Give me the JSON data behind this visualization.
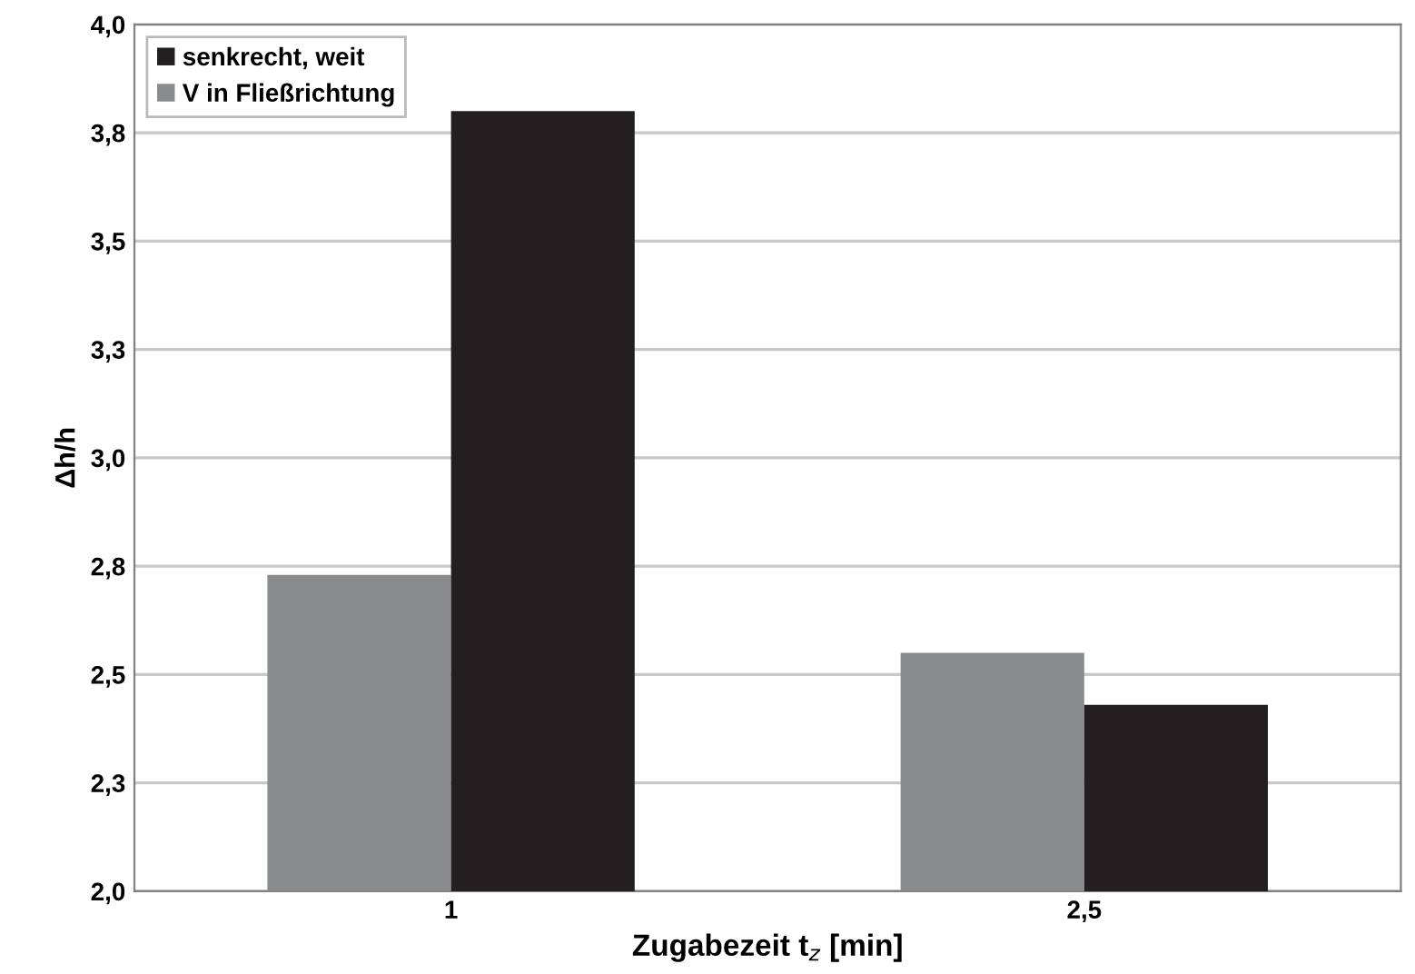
{
  "chart_data": {
    "type": "bar",
    "xlabel": "Zugabezeit t$_{z}$ [min]",
    "ylabel": "Δh/h",
    "categories": [
      "1",
      "2,5"
    ],
    "series": [
      {
        "name": "V in Fließrichtung",
        "color": "#8a8b8d",
        "values": [
          2.73,
          2.55
        ]
      },
      {
        "name": "senkrecht, weit",
        "color": "#231f20",
        "values": [
          3.8,
          2.43
        ]
      }
    ],
    "ylim": [
      2.0,
      4.0
    ],
    "yticks": [
      {
        "value": 2.0,
        "label": "2,0"
      },
      {
        "value": 2.25,
        "label": "2,3"
      },
      {
        "value": 2.5,
        "label": "2,5"
      },
      {
        "value": 2.75,
        "label": "2,8"
      },
      {
        "value": 3.0,
        "label": "3,0"
      },
      {
        "value": 3.25,
        "label": "3,3"
      },
      {
        "value": 3.5,
        "label": "3,5"
      },
      {
        "value": 3.75,
        "label": "3,8"
      },
      {
        "value": 4.0,
        "label": "4,0"
      }
    ],
    "grid": "y",
    "legend": "top left"
  }
}
